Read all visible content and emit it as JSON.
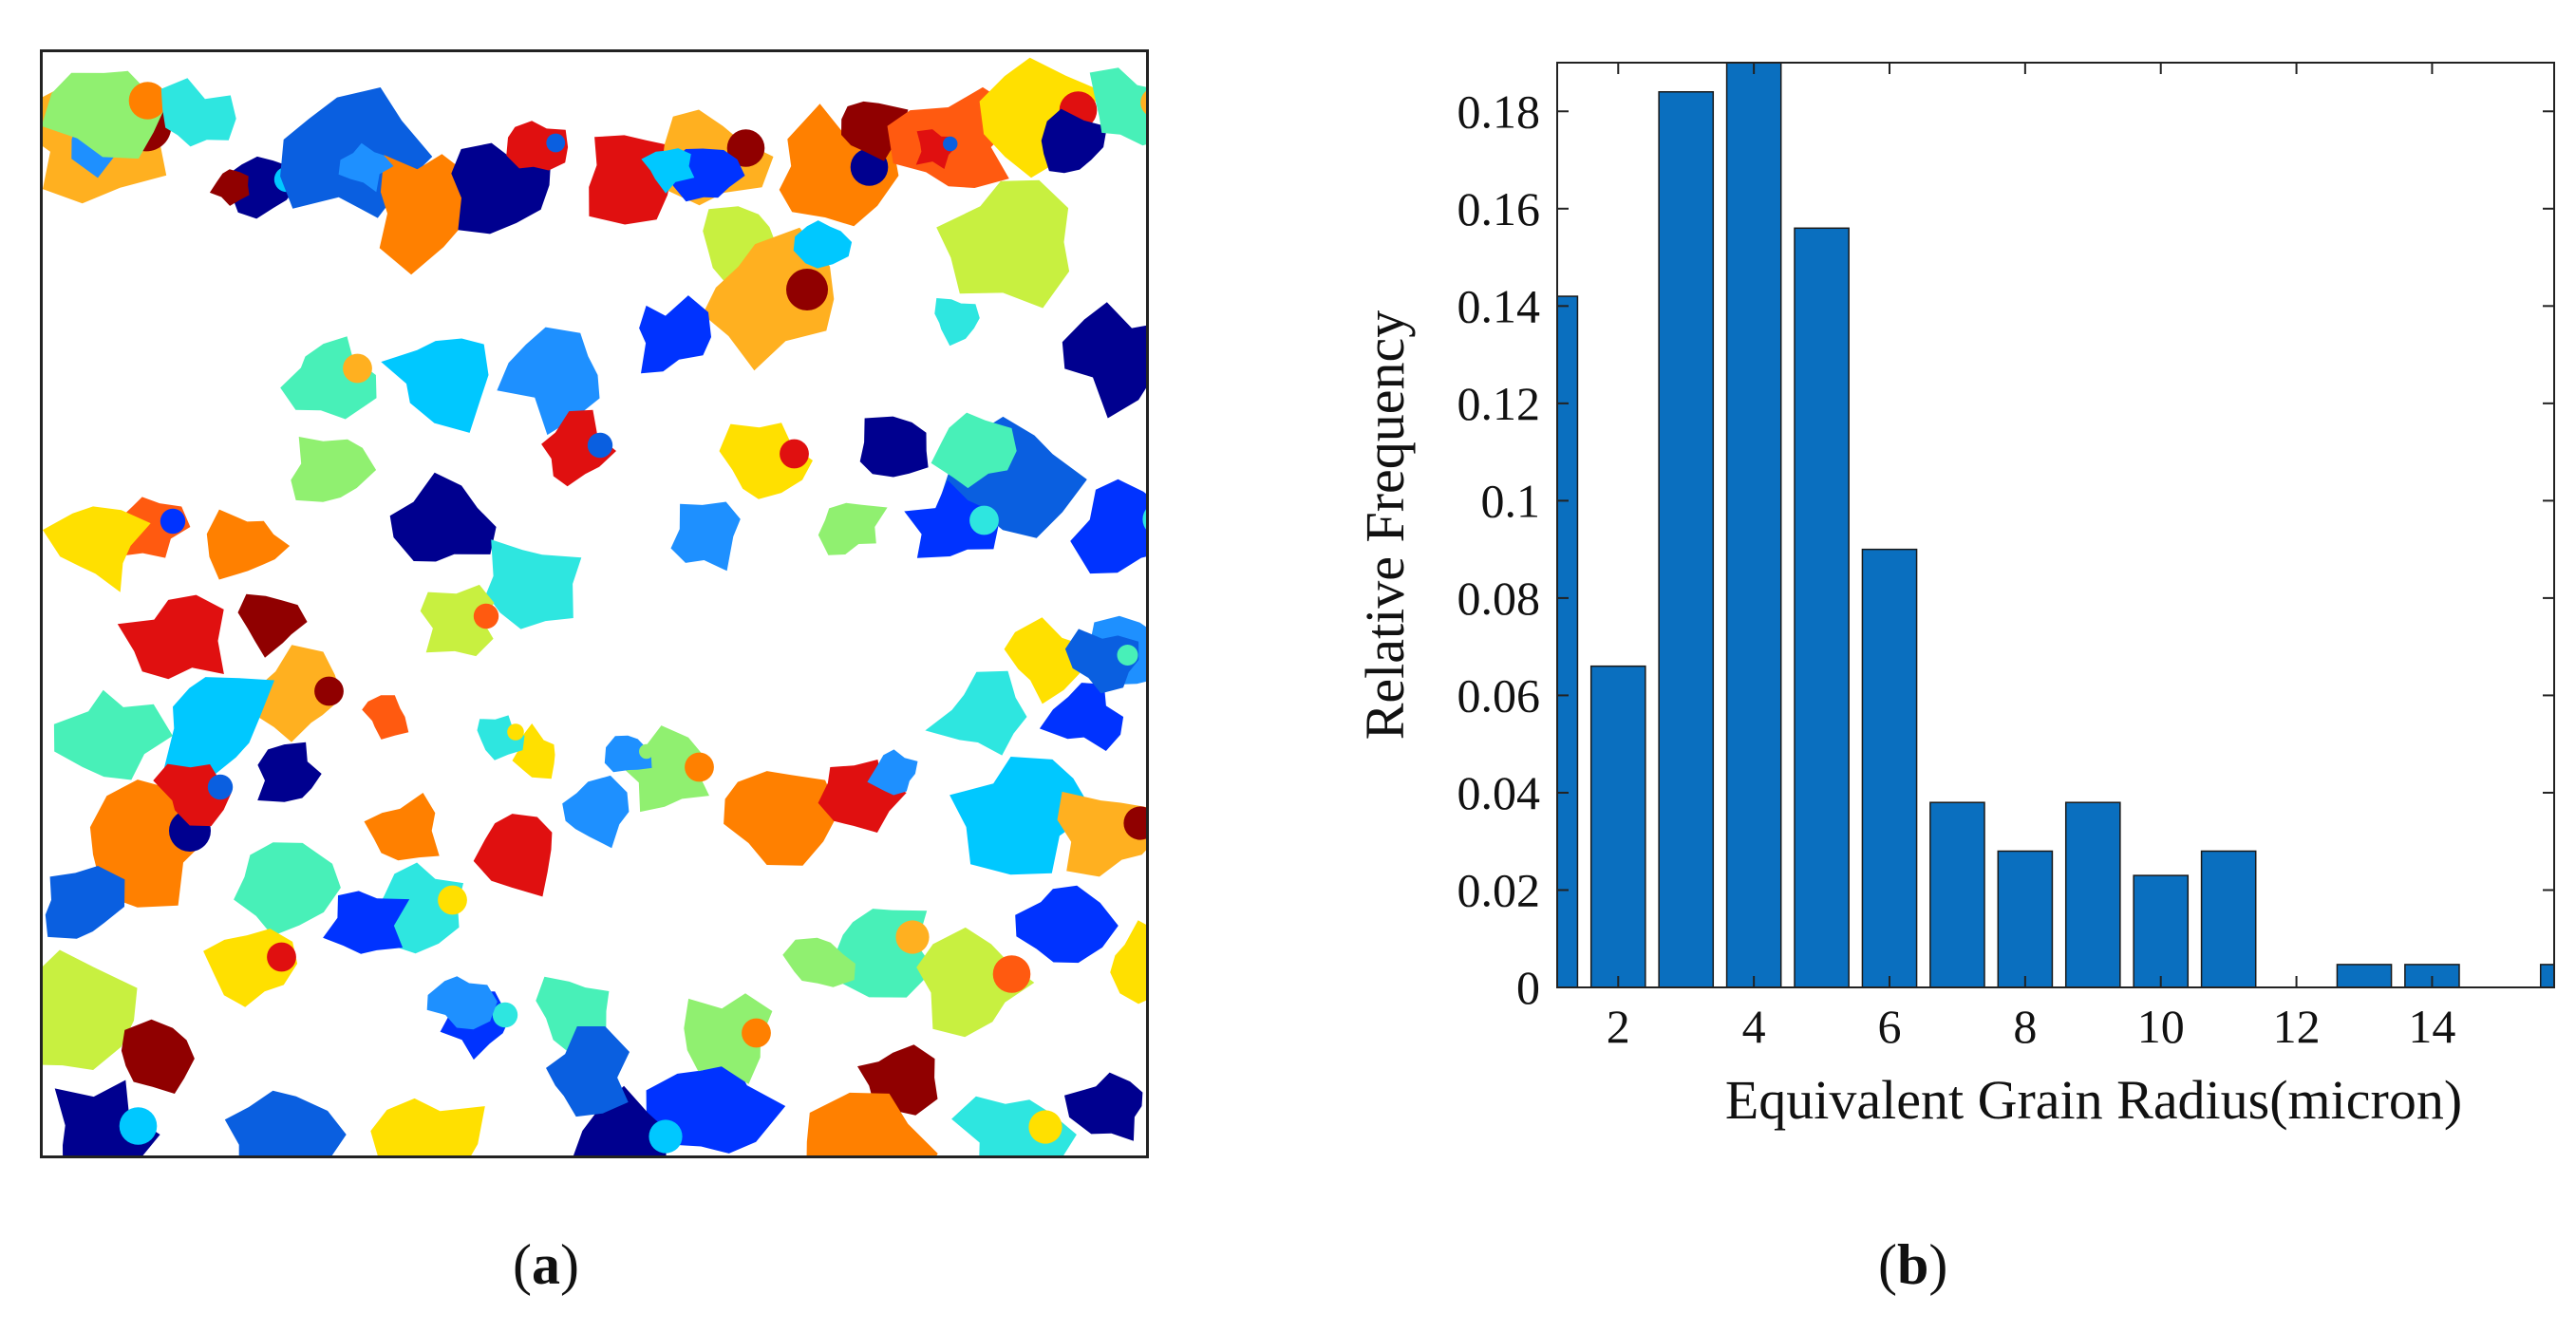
{
  "captions": {
    "a_open": "(",
    "a_letter": "a",
    "a_close": ")",
    "b_open": "(",
    "b_letter": "b",
    "b_close": ")"
  },
  "chart_data": {
    "type": "bar",
    "title": "",
    "xlabel": "Equivalent Grain Radius(micron)",
    "ylabel": "Relative Frequency",
    "x": [
      1,
      2,
      3,
      4,
      5,
      6,
      7,
      8,
      9,
      10,
      11,
      12,
      13,
      14,
      15,
      16
    ],
    "values": [
      0.142,
      0.066,
      0.184,
      0.19,
      0.156,
      0.09,
      0.038,
      0.028,
      0.038,
      0.023,
      0.028,
      0.0,
      0.0047,
      0.0047,
      0.0,
      0.0047
    ],
    "xlim": [
      1.1,
      15.8
    ],
    "ylim": [
      0,
      0.19
    ],
    "xticks": [
      "2",
      "4",
      "6",
      "8",
      "10",
      "12",
      "14"
    ],
    "xtick_values": [
      2,
      4,
      6,
      8,
      10,
      12,
      14
    ],
    "yticks": [
      "0",
      "0.02",
      "0.04",
      "0.06",
      "0.08",
      "0.1",
      "0.12",
      "0.14",
      "0.16",
      "0.18"
    ],
    "ytick_values": [
      0,
      0.02,
      0.04,
      0.06,
      0.08,
      0.1,
      0.12,
      0.14,
      0.16,
      0.18
    ],
    "bar_color": "#0a6fbf",
    "grid": false
  },
  "grain_map": {
    "palette": [
      "#00008f",
      "#0033ff",
      "#0a5fe0",
      "#1e90ff",
      "#00c8ff",
      "#2ee6e0",
      "#48f0b8",
      "#90f070",
      "#c8f040",
      "#ffe000",
      "#ffb020",
      "#ff8000",
      "#ff5a10",
      "#e01010",
      "#900000"
    ],
    "grains": [
      [
        60,
        230,
        140,
        0
      ],
      [
        110,
        320,
        110,
        2
      ],
      [
        90,
        400,
        160,
        11
      ],
      [
        120,
        55,
        90,
        10
      ],
      [
        70,
        65,
        80,
        3
      ],
      [
        75,
        480,
        140,
        0
      ],
      [
        90,
        70,
        60,
        7
      ],
      [
        60,
        160,
        70,
        5
      ],
      [
        80,
        620,
        130,
        13
      ],
      [
        90,
        700,
        110,
        10
      ],
      [
        70,
        740,
        200,
        8
      ],
      [
        60,
        700,
        130,
        1
      ],
      [
        90,
        830,
        130,
        11
      ],
      [
        60,
        870,
        80,
        14
      ],
      [
        95,
        960,
        100,
        12
      ],
      [
        90,
        1050,
        70,
        9
      ],
      [
        60,
        1080,
        100,
        0
      ],
      [
        100,
        1020,
        200,
        8
      ],
      [
        70,
        1140,
        60,
        6
      ],
      [
        80,
        1130,
        320,
        0
      ],
      [
        100,
        1020,
        450,
        2
      ],
      [
        80,
        1140,
        500,
        1
      ],
      [
        60,
        1140,
        640,
        3
      ],
      [
        70,
        1060,
        640,
        9
      ],
      [
        100,
        760,
        260,
        10
      ],
      [
        60,
        660,
        300,
        1
      ],
      [
        80,
        540,
        340,
        3
      ],
      [
        60,
        560,
        420,
        13
      ],
      [
        70,
        420,
        500,
        0
      ],
      [
        90,
        420,
        340,
        4
      ],
      [
        70,
        300,
        340,
        6
      ],
      [
        60,
        300,
        440,
        7
      ],
      [
        60,
        220,
        520,
        11
      ],
      [
        60,
        110,
        500,
        12
      ],
      [
        70,
        60,
        520,
        9
      ],
      [
        65,
        980,
        420,
        6
      ],
      [
        70,
        960,
        500,
        1
      ],
      [
        60,
        900,
        420,
        0
      ],
      [
        50,
        850,
        500,
        7
      ],
      [
        70,
        760,
        430,
        9
      ],
      [
        60,
        700,
        510,
        3
      ],
      [
        80,
        510,
        560,
        5
      ],
      [
        60,
        440,
        600,
        8
      ],
      [
        55,
        240,
        600,
        14
      ],
      [
        80,
        140,
        620,
        13
      ],
      [
        70,
        270,
        680,
        10
      ],
      [
        90,
        180,
        700,
        4
      ],
      [
        80,
        70,
        720,
        6
      ],
      [
        100,
        110,
        830,
        11
      ],
      [
        70,
        40,
        900,
        2
      ],
      [
        90,
        250,
        880,
        6
      ],
      [
        70,
        400,
        900,
        5
      ],
      [
        80,
        500,
        840,
        13
      ],
      [
        60,
        580,
        800,
        3
      ],
      [
        70,
        660,
        760,
        7
      ],
      [
        90,
        770,
        800,
        11
      ],
      [
        60,
        860,
        780,
        13
      ],
      [
        80,
        880,
        940,
        6
      ],
      [
        70,
        990,
        700,
        5
      ],
      [
        100,
        1030,
        800,
        4
      ],
      [
        80,
        1120,
        820,
        10
      ],
      [
        60,
        1160,
        960,
        9
      ],
      [
        70,
        1070,
        920,
        1
      ],
      [
        90,
        980,
        980,
        8
      ],
      [
        60,
        900,
        1080,
        14
      ],
      [
        60,
        1130,
        1110,
        0
      ],
      [
        80,
        1020,
        1140,
        5
      ],
      [
        100,
        860,
        1160,
        11
      ],
      [
        90,
        700,
        1110,
        1
      ],
      [
        80,
        620,
        1150,
        0
      ],
      [
        60,
        560,
        1010,
        6
      ],
      [
        70,
        570,
        1080,
        2
      ],
      [
        60,
        460,
        1020,
        1
      ],
      [
        100,
        400,
        1150,
        9
      ],
      [
        80,
        250,
        1140,
        2
      ],
      [
        90,
        60,
        1140,
        0
      ],
      [
        100,
        30,
        1020,
        8
      ],
      [
        60,
        120,
        1060,
        14
      ],
      [
        70,
        220,
        960,
        9
      ],
      [
        60,
        340,
        920,
        1
      ],
      [
        50,
        440,
        1000,
        3
      ],
      [
        70,
        720,
        1040,
        7
      ],
      [
        60,
        380,
        820,
        11
      ],
      [
        55,
        260,
        760,
        0
      ],
      [
        60,
        160,
        780,
        13
      ],
      [
        50,
        820,
        960,
        7
      ],
      [
        60,
        1100,
        700,
        1
      ],
      [
        50,
        1120,
        640,
        2
      ],
      [
        40,
        960,
        280,
        5
      ],
      [
        40,
        660,
        120,
        4
      ],
      [
        45,
        520,
        100,
        13
      ],
      [
        40,
        340,
        120,
        3
      ],
      [
        35,
        200,
        140,
        14
      ],
      [
        35,
        940,
        100,
        13
      ],
      [
        40,
        820,
        200,
        4
      ],
      [
        35,
        900,
        760,
        3
      ],
      [
        35,
        620,
        740,
        3
      ],
      [
        40,
        520,
        740,
        9
      ],
      [
        35,
        360,
        700,
        12
      ],
      [
        40,
        480,
        720,
        5
      ]
    ]
  }
}
